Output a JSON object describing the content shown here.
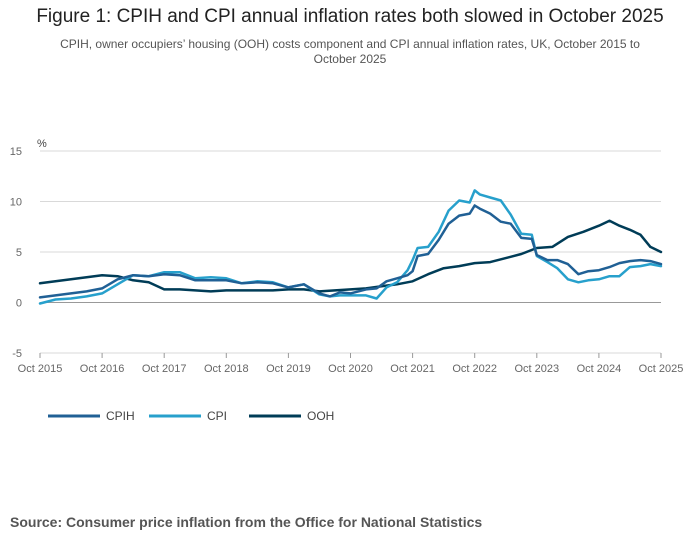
{
  "title": "Figure 1: CPIH and CPI annual inflation rates both slowed in October 2025",
  "subtitle": "CPIH, owner occupiers’ housing (OOH) costs component and CPI annual inflation rates, UK, October 2015 to October 2025",
  "source": "Source: Consumer price inflation from the Office for National Statistics",
  "chart_data": {
    "type": "line",
    "ylabel": "%",
    "ylim": [
      -5,
      15
    ],
    "yticks": [
      "15",
      "10",
      "5",
      "0",
      "-5"
    ],
    "ytick_values": [
      15,
      10,
      5,
      0,
      -5
    ],
    "xlim": [
      2015.75,
      2025.75
    ],
    "xticks": [
      "Oct 2015",
      "Oct 2016",
      "Oct 2017",
      "Oct 2018",
      "Oct 2019",
      "Oct 2020",
      "Oct 2021",
      "Oct 2022",
      "Oct 2023",
      "Oct 2024",
      "Oct 2025"
    ],
    "xtick_values": [
      2015.75,
      2016.75,
      2017.75,
      2018.75,
      2019.75,
      2020.75,
      2021.75,
      2022.75,
      2023.75,
      2024.75,
      2025.75
    ],
    "grid": true,
    "legend_position": "bottom-left",
    "series": [
      {
        "name": "CPIH",
        "color": "#206095",
        "x": [
          2015.75,
          2016.0,
          2016.25,
          2016.5,
          2016.75,
          2017.0,
          2017.25,
          2017.5,
          2017.75,
          2018.0,
          2018.25,
          2018.5,
          2018.75,
          2019.0,
          2019.25,
          2019.5,
          2019.75,
          2020.0,
          2020.25,
          2020.42,
          2020.58,
          2020.75,
          2021.0,
          2021.17,
          2021.33,
          2021.5,
          2021.67,
          2021.75,
          2021.83,
          2022.0,
          2022.17,
          2022.33,
          2022.5,
          2022.67,
          2022.75,
          2022.83,
          2023.0,
          2023.17,
          2023.33,
          2023.5,
          2023.67,
          2023.75,
          2023.92,
          2024.08,
          2024.25,
          2024.42,
          2024.58,
          2024.75,
          2024.92,
          2025.08,
          2025.25,
          2025.42,
          2025.58,
          2025.75
        ],
        "values": [
          0.5,
          0.7,
          0.9,
          1.1,
          1.4,
          2.3,
          2.7,
          2.6,
          2.8,
          2.7,
          2.2,
          2.2,
          2.2,
          1.9,
          2.0,
          1.9,
          1.5,
          1.8,
          0.9,
          0.6,
          1.0,
          0.9,
          1.3,
          1.4,
          2.1,
          2.4,
          2.7,
          3.1,
          4.6,
          4.8,
          6.2,
          7.8,
          8.6,
          8.8,
          9.6,
          9.3,
          8.8,
          8.0,
          7.8,
          6.4,
          6.3,
          4.7,
          4.2,
          4.2,
          3.8,
          2.8,
          3.1,
          3.2,
          3.5,
          3.9,
          4.1,
          4.2,
          4.1,
          3.8
        ]
      },
      {
        "name": "CPI",
        "color": "#27a0cc",
        "x": [
          2015.75,
          2016.0,
          2016.25,
          2016.5,
          2016.75,
          2017.0,
          2017.25,
          2017.5,
          2017.75,
          2018.0,
          2018.25,
          2018.5,
          2018.75,
          2019.0,
          2019.25,
          2019.5,
          2019.75,
          2020.0,
          2020.25,
          2020.42,
          2020.58,
          2020.75,
          2021.0,
          2021.17,
          2021.33,
          2021.5,
          2021.67,
          2021.75,
          2021.83,
          2022.0,
          2022.17,
          2022.33,
          2022.5,
          2022.67,
          2022.75,
          2022.83,
          2023.0,
          2023.17,
          2023.33,
          2023.5,
          2023.67,
          2023.75,
          2023.92,
          2024.08,
          2024.25,
          2024.42,
          2024.58,
          2024.75,
          2024.92,
          2025.08,
          2025.25,
          2025.42,
          2025.58,
          2025.75
        ],
        "values": [
          -0.1,
          0.3,
          0.4,
          0.6,
          0.9,
          1.8,
          2.7,
          2.6,
          3.0,
          3.0,
          2.4,
          2.5,
          2.4,
          1.9,
          2.1,
          2.0,
          1.5,
          1.8,
          0.8,
          0.6,
          0.7,
          0.7,
          0.7,
          0.4,
          1.5,
          2.0,
          3.2,
          4.2,
          5.4,
          5.5,
          7.0,
          9.1,
          10.1,
          9.9,
          11.1,
          10.7,
          10.4,
          10.1,
          8.7,
          6.8,
          6.7,
          4.6,
          4.0,
          3.4,
          2.3,
          2.0,
          2.2,
          2.3,
          2.6,
          2.6,
          3.5,
          3.6,
          3.8,
          3.6
        ]
      },
      {
        "name": "OOH",
        "color": "#003c57",
        "x": [
          2015.75,
          2016.0,
          2016.25,
          2016.5,
          2016.75,
          2017.0,
          2017.25,
          2017.5,
          2017.75,
          2018.0,
          2018.25,
          2018.5,
          2018.75,
          2019.0,
          2019.25,
          2019.5,
          2019.75,
          2020.0,
          2020.25,
          2020.5,
          2020.75,
          2021.0,
          2021.25,
          2021.5,
          2021.75,
          2022.0,
          2022.25,
          2022.5,
          2022.75,
          2023.0,
          2023.25,
          2023.5,
          2023.75,
          2024.0,
          2024.25,
          2024.5,
          2024.75,
          2024.92,
          2025.08,
          2025.25,
          2025.42,
          2025.58,
          2025.75
        ],
        "values": [
          1.9,
          2.1,
          2.3,
          2.5,
          2.7,
          2.6,
          2.2,
          2.0,
          1.3,
          1.3,
          1.2,
          1.1,
          1.2,
          1.2,
          1.2,
          1.2,
          1.3,
          1.3,
          1.1,
          1.2,
          1.3,
          1.4,
          1.6,
          1.8,
          2.1,
          2.8,
          3.4,
          3.6,
          3.9,
          4.0,
          4.4,
          4.8,
          5.4,
          5.5,
          6.5,
          7.0,
          7.6,
          8.1,
          7.6,
          7.2,
          6.7,
          5.5,
          5.0
        ]
      }
    ]
  }
}
